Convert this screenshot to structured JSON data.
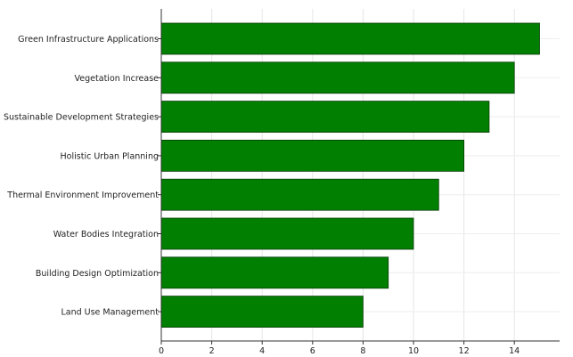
{
  "chart_data": {
    "type": "bar",
    "orientation": "horizontal",
    "categories": [
      "Green Infrastructure Applications",
      "Vegetation Increase",
      "Sustainable Development Strategies",
      "Holistic Urban Planning",
      "Thermal Environment Improvement",
      "Water Bodies Integration",
      "Building Design Optimization",
      "Land Use Management"
    ],
    "values": [
      15,
      14,
      13,
      12,
      11,
      10,
      9,
      8
    ],
    "xlim": [
      0,
      16
    ],
    "xticks": [
      "0",
      "2",
      "4",
      "6",
      "8",
      "10",
      "12",
      "14"
    ],
    "grid": true,
    "bar_color": "#007f00",
    "title": "",
    "xlabel": "",
    "ylabel": ""
  }
}
